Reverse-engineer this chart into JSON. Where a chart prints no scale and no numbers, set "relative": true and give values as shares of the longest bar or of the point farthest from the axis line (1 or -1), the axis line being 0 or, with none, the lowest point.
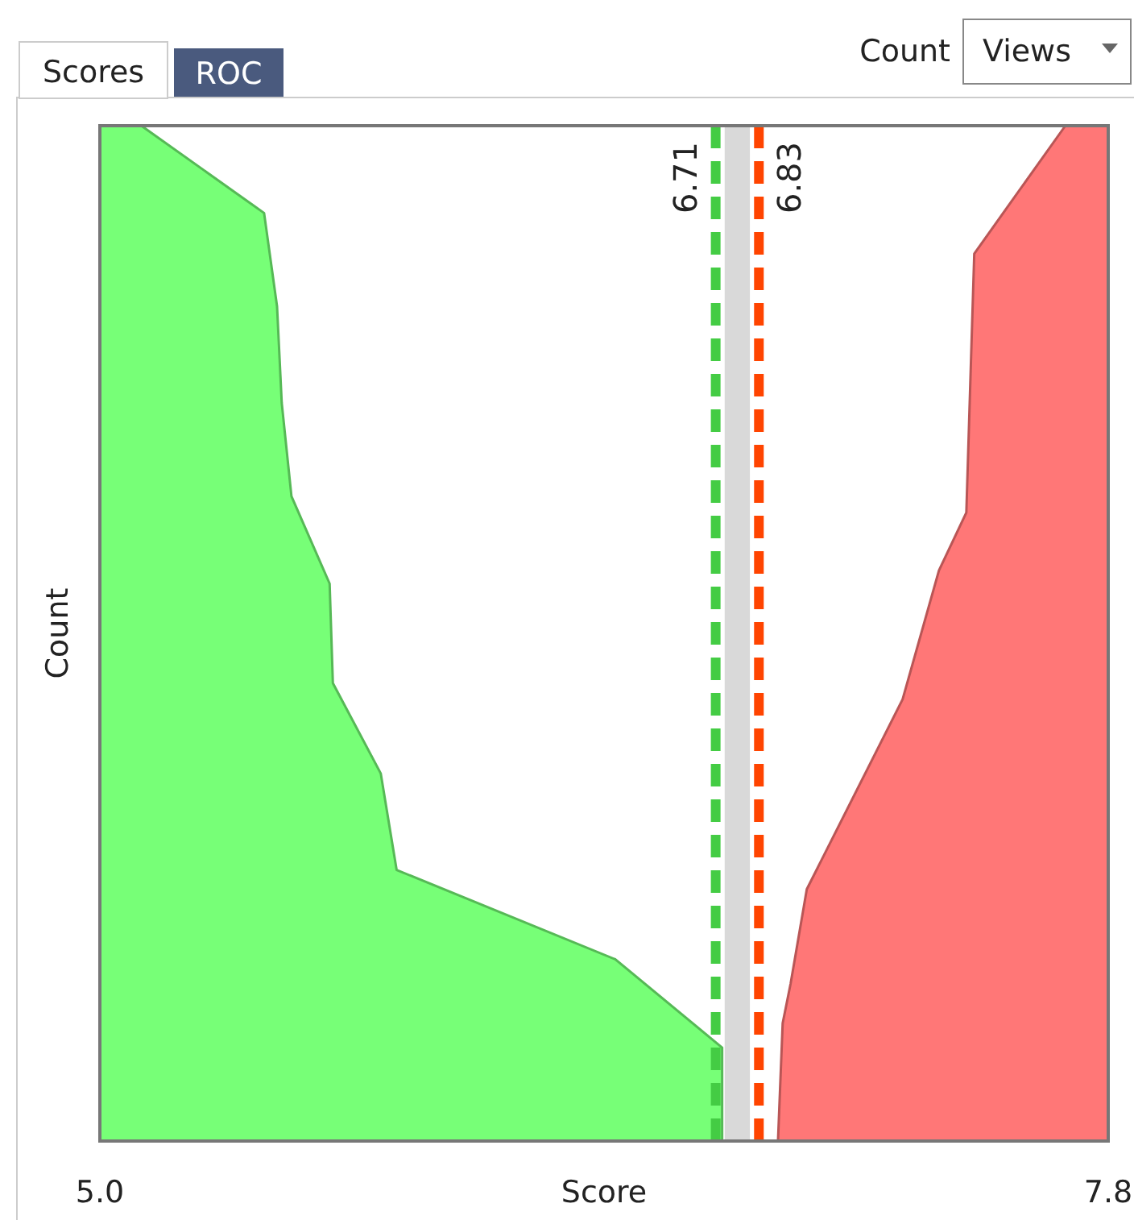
{
  "chart_data": {
    "type": "area",
    "xlabel": "Score",
    "ylabel": "Count",
    "relative": true,
    "xlim": [
      5.0,
      7.8
    ],
    "xticks": [
      {
        "value": 5.0,
        "label": "5.0"
      },
      {
        "value": 7.8,
        "label": "7.8"
      }
    ],
    "series": [
      {
        "color": "#77ff77",
        "x": [
          5.0,
          5.115,
          5.456,
          5.492,
          5.505,
          5.532,
          5.638,
          5.647,
          5.78,
          5.824,
          6.431,
          6.728,
          6.728
        ],
        "values": [
          1,
          1,
          0.914,
          0.822,
          0.727,
          0.635,
          0.549,
          0.451,
          0.362,
          0.267,
          0.179,
          0.092,
          0
        ]
      },
      {
        "color": "#ff7777",
        "x": [
          6.883,
          6.896,
          6.918,
          6.963,
          7.229,
          7.33,
          7.406,
          7.428,
          7.681,
          7.8
        ],
        "values": [
          0,
          0.116,
          0.155,
          0.248,
          0.435,
          0.562,
          0.619,
          0.874,
          1,
          1
        ]
      }
    ],
    "bands": [
      {
        "axis": "x",
        "from": 6.735,
        "to": 6.805,
        "color": "#d9d9d9"
      }
    ],
    "ref_lines": [
      {
        "axis": "x",
        "value": 6.71,
        "label": "6.71",
        "color": "#44cc44",
        "line_style": "dashed"
      },
      {
        "axis": "x",
        "value": 6.83,
        "label": "6.83",
        "color": "#ff4400",
        "line_style": "dashed"
      }
    ],
    "annotations": [
      "Scores",
      "ROC",
      "Count",
      "Views"
    ]
  }
}
